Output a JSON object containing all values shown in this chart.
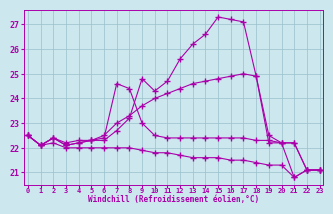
{
  "bg_color": "#cce8ee",
  "grid_color": "#9bbfcc",
  "line_color": "#aa00aa",
  "marker": "+",
  "ylim": [
    20.5,
    27.6
  ],
  "xlim": [
    -0.3,
    23.3
  ],
  "yticks": [
    21,
    22,
    23,
    24,
    25,
    26,
    27
  ],
  "xticks": [
    0,
    1,
    2,
    3,
    4,
    5,
    6,
    7,
    8,
    9,
    10,
    11,
    12,
    13,
    14,
    15,
    16,
    17,
    18,
    19,
    20,
    21,
    22,
    23
  ],
  "xlabel": "Windchill (Refroidissement éolien,°C)",
  "series": [
    {
      "x": [
        0,
        1,
        2,
        3,
        4,
        5,
        6,
        7,
        8,
        9,
        10,
        11,
        12,
        13,
        14,
        15,
        16,
        17,
        18,
        19,
        20,
        21,
        22,
        23
      ],
      "y": [
        22.5,
        22.1,
        22.4,
        22.1,
        22.2,
        22.3,
        22.3,
        22.7,
        23.2,
        24.8,
        24.3,
        24.7,
        25.6,
        26.2,
        26.6,
        27.3,
        27.2,
        27.1,
        24.9,
        22.5,
        22.2,
        20.8,
        21.1,
        21.1
      ]
    },
    {
      "x": [
        0,
        1,
        2,
        3,
        4,
        5,
        6,
        7,
        8,
        9,
        10,
        11,
        12,
        13,
        14,
        15,
        16,
        17,
        18,
        19,
        20,
        21,
        22,
        23
      ],
      "y": [
        22.5,
        22.1,
        22.4,
        22.1,
        22.2,
        22.3,
        22.5,
        23.0,
        23.3,
        23.7,
        24.0,
        24.2,
        24.4,
        24.6,
        24.7,
        24.8,
        24.9,
        25.0,
        24.9,
        22.2,
        22.2,
        22.2,
        21.1,
        21.1
      ]
    },
    {
      "x": [
        0,
        1,
        2,
        3,
        4,
        5,
        6,
        7,
        8,
        9,
        10,
        11,
        12,
        13,
        14,
        15,
        16,
        17,
        18,
        19,
        20,
        21,
        22,
        23
      ],
      "y": [
        22.5,
        22.1,
        22.4,
        22.2,
        22.3,
        22.3,
        22.4,
        24.6,
        24.4,
        23.0,
        22.5,
        22.4,
        22.4,
        22.4,
        22.4,
        22.4,
        22.4,
        22.4,
        22.3,
        22.3,
        22.2,
        22.2,
        21.1,
        21.1
      ]
    },
    {
      "x": [
        0,
        1,
        2,
        3,
        4,
        5,
        6,
        7,
        8,
        9,
        10,
        11,
        12,
        13,
        14,
        15,
        16,
        17,
        18,
        19,
        20,
        21,
        22,
        23
      ],
      "y": [
        22.5,
        22.1,
        22.2,
        22.0,
        22.0,
        22.0,
        22.0,
        22.0,
        22.0,
        21.9,
        21.8,
        21.8,
        21.7,
        21.6,
        21.6,
        21.6,
        21.5,
        21.5,
        21.4,
        21.3,
        21.3,
        20.8,
        21.1,
        21.1
      ]
    }
  ]
}
